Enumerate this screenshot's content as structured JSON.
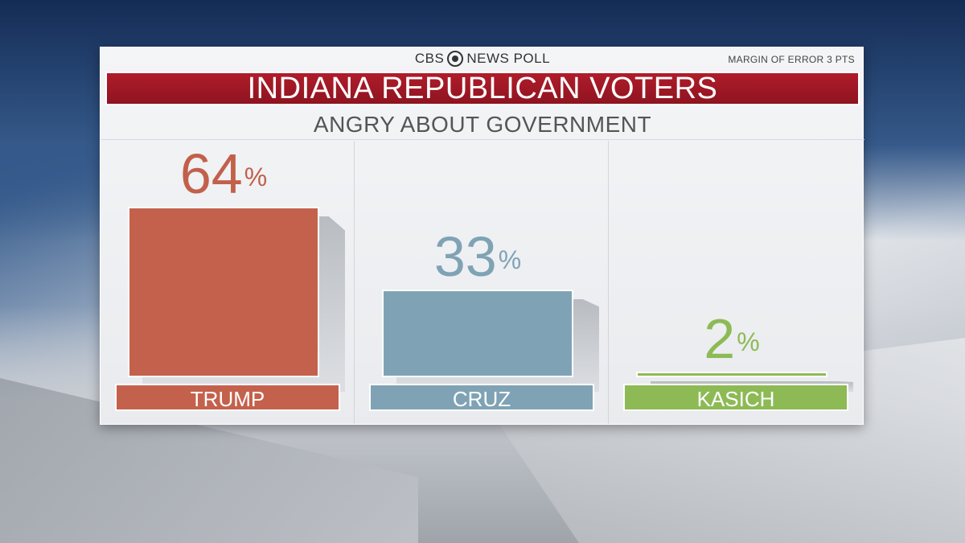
{
  "header": {
    "logo_left": "CBS",
    "logo_right": "NEWS POLL",
    "margin_of_error": "MARGIN OF ERROR 3 PTS",
    "title": "INDIANA REPUBLICAN VOTERS",
    "subtitle": "ANGRY ABOUT GOVERNMENT"
  },
  "chart_data": {
    "type": "bar",
    "title": "INDIANA REPUBLICAN VOTERS",
    "subtitle": "ANGRY ABOUT GOVERNMENT",
    "categories": [
      "TRUMP",
      "CRUZ",
      "KASICH"
    ],
    "values": [
      64,
      33,
      2
    ],
    "value_suffix": "%",
    "colors": [
      "#c4614c",
      "#7fa3b5",
      "#8dba55"
    ],
    "value_colors": [
      "#c2604b",
      "#7fa3b5",
      "#8dba55"
    ],
    "ylim": [
      0,
      64
    ],
    "xlabel": "",
    "ylabel": ""
  }
}
